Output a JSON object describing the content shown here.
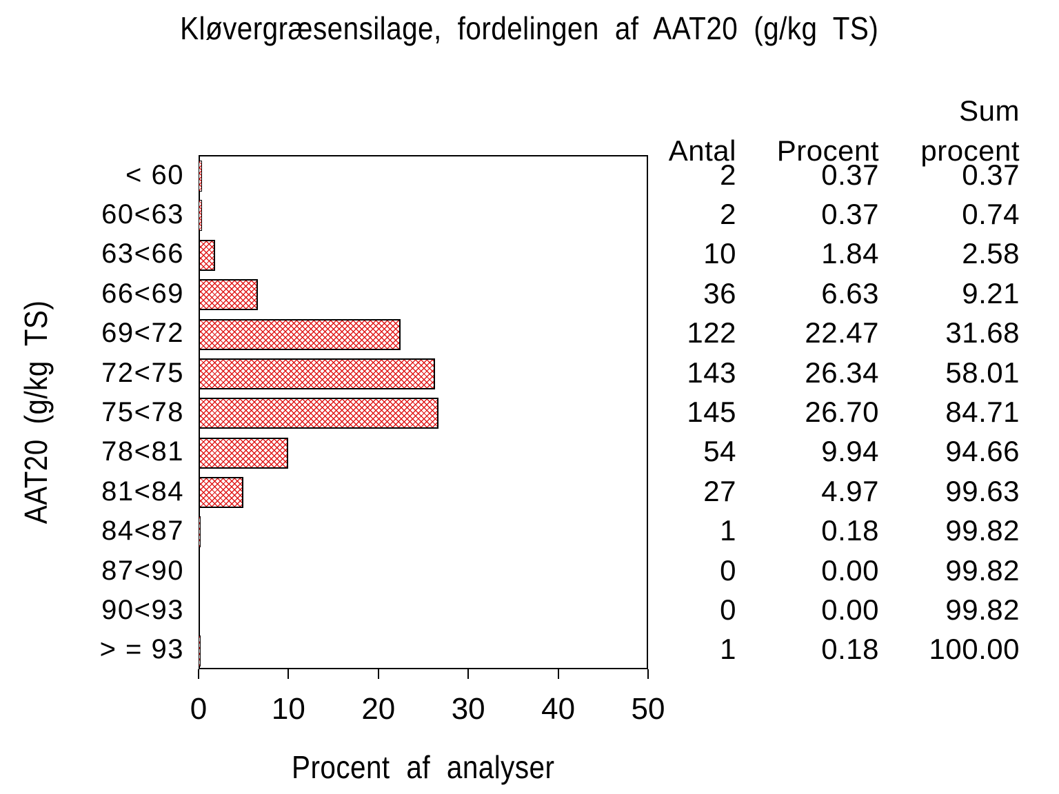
{
  "chart_data": {
    "type": "bar",
    "orientation": "horizontal",
    "title": "Kløvergræsensilage, fordelingen af AAT20 (g/kg TS)",
    "xlabel": "Procent af analyser",
    "ylabel": "AAT20 (g/kg TS)",
    "xlim": [
      0,
      50
    ],
    "xticks": [
      "0",
      "10",
      "20",
      "30",
      "40",
      "50"
    ],
    "grid": false,
    "legend": false,
    "bar_color": "#e01818",
    "hatch": "diagonal-crosshatch",
    "categories": [
      "< 60",
      "60<63",
      "63<66",
      "66<69",
      "69<72",
      "72<75",
      "75<78",
      "78<81",
      "81<84",
      "84<87",
      "87<90",
      "90<93",
      "> = 93"
    ],
    "values": [
      0.37,
      0.37,
      1.84,
      6.63,
      22.47,
      26.34,
      26.7,
      9.94,
      4.97,
      0.18,
      0.0,
      0.0,
      0.18
    ]
  },
  "table": {
    "headers": {
      "antal": "Antal",
      "procent": "Procent",
      "sum_line1": "Sum",
      "sum_line2": "procent"
    },
    "rows": [
      {
        "antal": "2",
        "procent": "0.37",
        "sum": "0.37"
      },
      {
        "antal": "2",
        "procent": "0.37",
        "sum": "0.74"
      },
      {
        "antal": "10",
        "procent": "1.84",
        "sum": "2.58"
      },
      {
        "antal": "36",
        "procent": "6.63",
        "sum": "9.21"
      },
      {
        "antal": "122",
        "procent": "22.47",
        "sum": "31.68"
      },
      {
        "antal": "143",
        "procent": "26.34",
        "sum": "58.01"
      },
      {
        "antal": "145",
        "procent": "26.70",
        "sum": "84.71"
      },
      {
        "antal": "54",
        "procent": "9.94",
        "sum": "94.66"
      },
      {
        "antal": "27",
        "procent": "4.97",
        "sum": "99.63"
      },
      {
        "antal": "1",
        "procent": "0.18",
        "sum": "99.82"
      },
      {
        "antal": "0",
        "procent": "0.00",
        "sum": "99.82"
      },
      {
        "antal": "0",
        "procent": "0.00",
        "sum": "99.82"
      },
      {
        "antal": "1",
        "procent": "0.18",
        "sum": "100.00"
      }
    ]
  }
}
